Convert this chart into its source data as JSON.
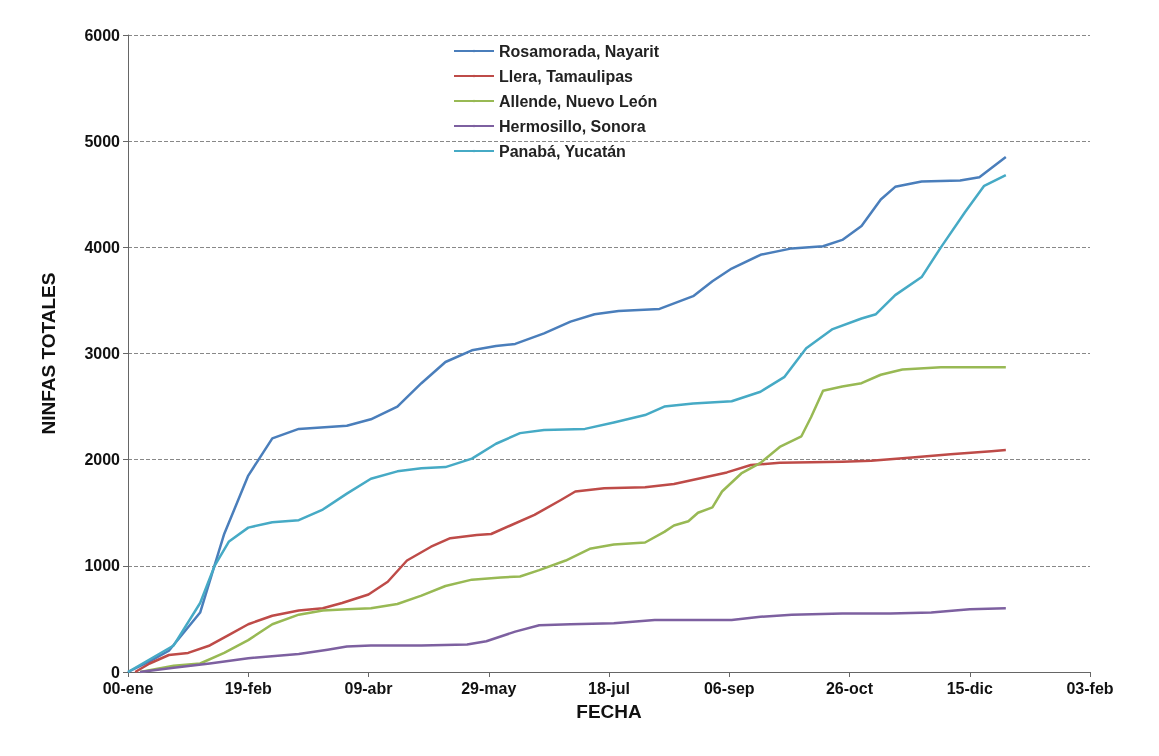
{
  "chart_data": {
    "type": "line",
    "xlabel": "FECHA",
    "ylabel": "NINFAS TOTALES",
    "xlim": [
      "1999-12-31",
      "2001-02-03"
    ],
    "xticks": [
      {
        "value": "1999-12-31",
        "label": "00-ene"
      },
      {
        "value": "2000-02-19",
        "label": "19-feb"
      },
      {
        "value": "2000-04-09",
        "label": "09-abr"
      },
      {
        "value": "2000-05-29",
        "label": "29-may"
      },
      {
        "value": "2000-07-18",
        "label": "18-jul"
      },
      {
        "value": "2000-09-06",
        "label": "06-sep"
      },
      {
        "value": "2000-10-26",
        "label": "26-oct"
      },
      {
        "value": "2000-12-15",
        "label": "15-dic"
      },
      {
        "value": "2001-02-03",
        "label": "03-feb"
      }
    ],
    "ylim": [
      0,
      6000
    ],
    "yticks": [
      0,
      1000,
      2000,
      3000,
      4000,
      5000,
      6000
    ],
    "grid": "y",
    "legend": "top",
    "marker": "none",
    "line_style": "solid",
    "series": [
      {
        "name": "Rosamorada, Nayarit",
        "color": "#4a7ebb",
        "x": [
          "1999-12-31",
          "2000-01-09",
          "2000-01-17",
          "2000-01-30",
          "2000-02-09",
          "2000-02-19",
          "2000-02-29",
          "2000-03-11",
          "2000-03-31",
          "2000-04-10",
          "2000-04-21",
          "2000-05-01",
          "2000-05-11",
          "2000-05-22",
          "2000-06-01",
          "2000-06-09",
          "2000-06-21",
          "2000-07-02",
          "2000-07-12",
          "2000-07-22",
          "2000-08-08",
          "2000-08-22",
          "2000-08-30",
          "2000-09-07",
          "2000-09-19",
          "2000-10-02",
          "2000-10-15",
          "2000-10-23",
          "2000-10-31",
          "2000-11-08",
          "2000-11-14",
          "2000-11-25",
          "2000-12-11",
          "2000-12-19",
          "2000-12-30"
        ],
        "values": [
          0,
          100,
          200,
          560,
          1300,
          1850,
          2200,
          2290,
          2320,
          2380,
          2500,
          2720,
          2920,
          3030,
          3070,
          3090,
          3190,
          3300,
          3370,
          3400,
          3420,
          3540,
          3680,
          3800,
          3930,
          3990,
          4010,
          4070,
          4200,
          4450,
          4570,
          4620,
          4630,
          4660,
          4850
        ]
      },
      {
        "name": "Llera, Tamaulipas",
        "color": "#be4b48",
        "x": [
          "2000-01-03",
          "2000-01-09",
          "2000-01-17",
          "2000-01-25",
          "2000-02-03",
          "2000-02-11",
          "2000-02-19",
          "2000-02-29",
          "2000-03-11",
          "2000-03-21",
          "2000-03-29",
          "2000-04-09",
          "2000-04-17",
          "2000-04-25",
          "2000-05-05",
          "2000-05-13",
          "2000-05-24",
          "2000-05-30",
          "2000-06-07",
          "2000-06-17",
          "2000-06-28",
          "2000-07-04",
          "2000-07-16",
          "2000-08-02",
          "2000-08-14",
          "2000-08-26",
          "2000-09-05",
          "2000-09-15",
          "2000-09-27",
          "2000-10-23",
          "2000-11-04",
          "2000-11-21",
          "2000-12-07",
          "2000-12-24",
          "2000-12-30"
        ],
        "values": [
          0,
          80,
          160,
          180,
          250,
          350,
          450,
          530,
          580,
          600,
          650,
          730,
          850,
          1050,
          1180,
          1260,
          1290,
          1300,
          1380,
          1480,
          1620,
          1700,
          1730,
          1740,
          1770,
          1830,
          1880,
          1950,
          1970,
          1980,
          1990,
          2020,
          2050,
          2080,
          2090
        ]
      },
      {
        "name": "Allende, Nuevo León",
        "color": "#98b954",
        "x": [
          "2000-01-05",
          "2000-01-19",
          "2000-01-30",
          "2000-02-09",
          "2000-02-19",
          "2000-02-29",
          "2000-03-11",
          "2000-03-21",
          "2000-03-31",
          "2000-04-10",
          "2000-04-21",
          "2000-05-01",
          "2000-05-11",
          "2000-05-22",
          "2000-06-03",
          "2000-06-11",
          "2000-06-19",
          "2000-06-30",
          "2000-07-10",
          "2000-07-20",
          "2000-08-02",
          "2000-08-10",
          "2000-08-14",
          "2000-08-20",
          "2000-08-24",
          "2000-08-30",
          "2000-09-03",
          "2000-09-11",
          "2000-09-19",
          "2000-09-27",
          "2000-10-06",
          "2000-10-10",
          "2000-10-15",
          "2000-10-23",
          "2000-10-31",
          "2000-11-08",
          "2000-11-17",
          "2000-12-03",
          "2000-12-30"
        ],
        "values": [
          0,
          60,
          80,
          180,
          300,
          450,
          540,
          580,
          590,
          600,
          640,
          720,
          810,
          870,
          890,
          900,
          960,
          1050,
          1160,
          1200,
          1220,
          1320,
          1380,
          1420,
          1500,
          1550,
          1700,
          1870,
          1970,
          2120,
          2220,
          2400,
          2650,
          2690,
          2720,
          2800,
          2850,
          2870,
          2870
        ]
      },
      {
        "name": "Hermosillo, Sonora",
        "color": "#7d60a0",
        "x": [
          "2000-01-05",
          "2000-01-19",
          "2000-02-03",
          "2000-02-19",
          "2000-03-11",
          "2000-03-23",
          "2000-03-31",
          "2000-04-10",
          "2000-05-01",
          "2000-05-20",
          "2000-05-28",
          "2000-06-09",
          "2000-06-19",
          "2000-07-02",
          "2000-07-20",
          "2000-08-06",
          "2000-08-22",
          "2000-09-07",
          "2000-09-19",
          "2000-10-02",
          "2000-10-23",
          "2000-11-12",
          "2000-11-29",
          "2000-12-15",
          "2000-12-30"
        ],
        "values": [
          0,
          40,
          80,
          130,
          170,
          210,
          240,
          250,
          250,
          260,
          290,
          380,
          440,
          450,
          460,
          490,
          490,
          490,
          520,
          540,
          550,
          550,
          560,
          590,
          600
        ]
      },
      {
        "name": "Panabá, Yucatán",
        "color": "#46aac5",
        "x": [
          "1999-12-31",
          "2000-01-19",
          "2000-01-30",
          "2000-02-05",
          "2000-02-11",
          "2000-02-19",
          "2000-02-29",
          "2000-03-11",
          "2000-03-21",
          "2000-03-31",
          "2000-04-10",
          "2000-04-21",
          "2000-05-01",
          "2000-05-11",
          "2000-05-22",
          "2000-06-01",
          "2000-06-11",
          "2000-06-21",
          "2000-07-08",
          "2000-07-20",
          "2000-08-02",
          "2000-08-10",
          "2000-08-22",
          "2000-09-07",
          "2000-09-19",
          "2000-09-29",
          "2000-10-08",
          "2000-10-19",
          "2000-10-31",
          "2000-11-06",
          "2000-11-14",
          "2000-11-25",
          "2000-12-03",
          "2000-12-13",
          "2000-12-21",
          "2000-12-30"
        ],
        "values": [
          0,
          250,
          650,
          1000,
          1230,
          1360,
          1410,
          1430,
          1530,
          1680,
          1820,
          1890,
          1920,
          1930,
          2010,
          2150,
          2250,
          2280,
          2290,
          2350,
          2420,
          2500,
          2530,
          2550,
          2640,
          2780,
          3050,
          3230,
          3330,
          3370,
          3550,
          3720,
          4000,
          4330,
          4580,
          4680
        ]
      }
    ]
  }
}
